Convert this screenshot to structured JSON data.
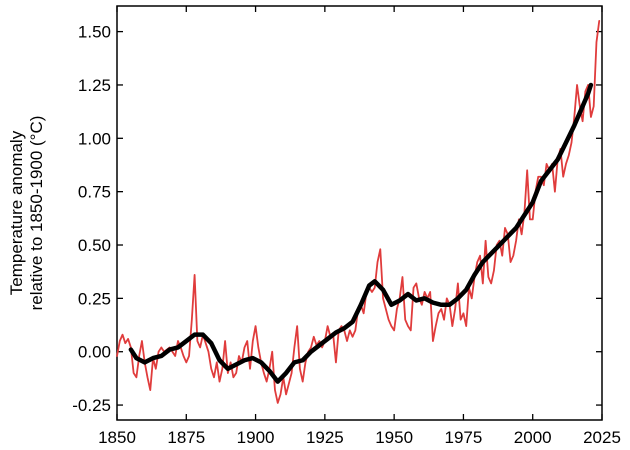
{
  "chart_data": {
    "type": "line",
    "title": "",
    "xlabel": "",
    "ylabel_line1": "Temperature anomaly",
    "ylabel_line2": "relative to 1850-1900 (°C)",
    "xlim": [
      1850,
      2025
    ],
    "ylim": [
      -0.32,
      1.62
    ],
    "grid": false,
    "legend": "none",
    "x_ticks": [
      1850,
      1875,
      1900,
      1925,
      1950,
      1975,
      2000,
      2025
    ],
    "x_tick_labels": [
      "1850",
      "1875",
      "1900",
      "1925",
      "1950",
      "1975",
      "2000",
      "2025"
    ],
    "y_ticks": [
      -0.25,
      0,
      0.25,
      0.5,
      0.75,
      1.0,
      1.25,
      1.5
    ],
    "y_tick_labels": [
      "-0.25",
      "0.00",
      "0.25",
      "0.50",
      "0.75",
      "1.00",
      "1.25",
      "1.50"
    ],
    "series": [
      {
        "color": "#e03c3c",
        "points": [
          [
            1850,
            -0.02
          ],
          [
            1851,
            0.05
          ],
          [
            1852,
            0.08
          ],
          [
            1853,
            0.04
          ],
          [
            1854,
            0.06
          ],
          [
            1855,
            0.02
          ],
          [
            1856,
            -0.1
          ],
          [
            1857,
            -0.12
          ],
          [
            1858,
            -0.02
          ],
          [
            1859,
            0.05
          ],
          [
            1860,
            -0.05
          ],
          [
            1861,
            -0.12
          ],
          [
            1862,
            -0.18
          ],
          [
            1863,
            -0.03
          ],
          [
            1864,
            -0.08
          ],
          [
            1865,
            0.0
          ],
          [
            1866,
            0.02
          ],
          [
            1867,
            0.0
          ],
          [
            1868,
            0.01
          ],
          [
            1869,
            0.02
          ],
          [
            1870,
            0.0
          ],
          [
            1871,
            -0.02
          ],
          [
            1872,
            0.05
          ],
          [
            1873,
            0.02
          ],
          [
            1874,
            -0.02
          ],
          [
            1875,
            -0.05
          ],
          [
            1876,
            -0.02
          ],
          [
            1877,
            0.15
          ],
          [
            1878,
            0.36
          ],
          [
            1879,
            0.05
          ],
          [
            1880,
            0.02
          ],
          [
            1881,
            0.08
          ],
          [
            1882,
            0.04
          ],
          [
            1883,
            0.0
          ],
          [
            1884,
            -0.08
          ],
          [
            1885,
            -0.12
          ],
          [
            1886,
            -0.05
          ],
          [
            1887,
            -0.14
          ],
          [
            1888,
            -0.08
          ],
          [
            1889,
            0.05
          ],
          [
            1890,
            -0.1
          ],
          [
            1891,
            -0.05
          ],
          [
            1892,
            -0.12
          ],
          [
            1893,
            -0.1
          ],
          [
            1894,
            -0.02
          ],
          [
            1895,
            -0.05
          ],
          [
            1896,
            0.02
          ],
          [
            1897,
            0.05
          ],
          [
            1898,
            -0.08
          ],
          [
            1899,
            0.05
          ],
          [
            1900,
            0.12
          ],
          [
            1901,
            0.02
          ],
          [
            1902,
            -0.05
          ],
          [
            1903,
            -0.1
          ],
          [
            1904,
            -0.14
          ],
          [
            1905,
            -0.08
          ],
          [
            1906,
            0.0
          ],
          [
            1907,
            -0.18
          ],
          [
            1908,
            -0.24
          ],
          [
            1909,
            -0.2
          ],
          [
            1910,
            -0.12
          ],
          [
            1911,
            -0.2
          ],
          [
            1912,
            -0.15
          ],
          [
            1913,
            -0.1
          ],
          [
            1914,
            0.02
          ],
          [
            1915,
            0.12
          ],
          [
            1916,
            -0.08
          ],
          [
            1917,
            -0.14
          ],
          [
            1918,
            -0.05
          ],
          [
            1919,
            0.0
          ],
          [
            1920,
            0.02
          ],
          [
            1921,
            0.07
          ],
          [
            1922,
            0.03
          ],
          [
            1923,
            0.05
          ],
          [
            1924,
            0.02
          ],
          [
            1925,
            0.05
          ],
          [
            1926,
            0.12
          ],
          [
            1927,
            0.07
          ],
          [
            1928,
            0.08
          ],
          [
            1929,
            -0.05
          ],
          [
            1930,
            0.1
          ],
          [
            1931,
            0.12
          ],
          [
            1932,
            0.1
          ],
          [
            1933,
            0.05
          ],
          [
            1934,
            0.1
          ],
          [
            1935,
            0.07
          ],
          [
            1936,
            0.1
          ],
          [
            1937,
            0.2
          ],
          [
            1938,
            0.22
          ],
          [
            1939,
            0.18
          ],
          [
            1940,
            0.28
          ],
          [
            1941,
            0.3
          ],
          [
            1942,
            0.28
          ],
          [
            1943,
            0.3
          ],
          [
            1944,
            0.42
          ],
          [
            1945,
            0.48
          ],
          [
            1946,
            0.25
          ],
          [
            1947,
            0.2
          ],
          [
            1948,
            0.15
          ],
          [
            1949,
            0.12
          ],
          [
            1950,
            0.1
          ],
          [
            1951,
            0.2
          ],
          [
            1952,
            0.25
          ],
          [
            1953,
            0.35
          ],
          [
            1954,
            0.15
          ],
          [
            1955,
            0.12
          ],
          [
            1956,
            0.1
          ],
          [
            1957,
            0.3
          ],
          [
            1958,
            0.32
          ],
          [
            1959,
            0.25
          ],
          [
            1960,
            0.22
          ],
          [
            1961,
            0.28
          ],
          [
            1962,
            0.25
          ],
          [
            1963,
            0.28
          ],
          [
            1964,
            0.05
          ],
          [
            1965,
            0.12
          ],
          [
            1966,
            0.18
          ],
          [
            1967,
            0.2
          ],
          [
            1968,
            0.15
          ],
          [
            1969,
            0.25
          ],
          [
            1970,
            0.22
          ],
          [
            1971,
            0.12
          ],
          [
            1972,
            0.2
          ],
          [
            1973,
            0.32
          ],
          [
            1974,
            0.15
          ],
          [
            1975,
            0.18
          ],
          [
            1976,
            0.12
          ],
          [
            1977,
            0.3
          ],
          [
            1978,
            0.25
          ],
          [
            1979,
            0.35
          ],
          [
            1980,
            0.42
          ],
          [
            1981,
            0.45
          ],
          [
            1982,
            0.32
          ],
          [
            1983,
            0.52
          ],
          [
            1984,
            0.35
          ],
          [
            1985,
            0.32
          ],
          [
            1986,
            0.38
          ],
          [
            1987,
            0.5
          ],
          [
            1988,
            0.52
          ],
          [
            1989,
            0.45
          ],
          [
            1990,
            0.58
          ],
          [
            1991,
            0.55
          ],
          [
            1992,
            0.42
          ],
          [
            1993,
            0.45
          ],
          [
            1994,
            0.52
          ],
          [
            1995,
            0.62
          ],
          [
            1996,
            0.55
          ],
          [
            1997,
            0.65
          ],
          [
            1998,
            0.85
          ],
          [
            1999,
            0.62
          ],
          [
            2000,
            0.62
          ],
          [
            2001,
            0.75
          ],
          [
            2002,
            0.82
          ],
          [
            2003,
            0.82
          ],
          [
            2004,
            0.78
          ],
          [
            2005,
            0.88
          ],
          [
            2006,
            0.85
          ],
          [
            2007,
            0.88
          ],
          [
            2008,
            0.75
          ],
          [
            2009,
            0.9
          ],
          [
            2010,
            0.95
          ],
          [
            2011,
            0.82
          ],
          [
            2012,
            0.88
          ],
          [
            2013,
            0.92
          ],
          [
            2014,
            0.98
          ],
          [
            2015,
            1.1
          ],
          [
            2016,
            1.25
          ],
          [
            2017,
            1.15
          ],
          [
            2018,
            1.08
          ],
          [
            2019,
            1.22
          ],
          [
            2020,
            1.25
          ],
          [
            2021,
            1.1
          ],
          [
            2022,
            1.15
          ],
          [
            2023,
            1.45
          ],
          [
            2024,
            1.55
          ]
        ]
      },
      {
        "color": "#000000",
        "points": [
          [
            1855,
            0.01
          ],
          [
            1857,
            -0.03
          ],
          [
            1860,
            -0.05
          ],
          [
            1863,
            -0.03
          ],
          [
            1866,
            -0.02
          ],
          [
            1869,
            0.01
          ],
          [
            1872,
            0.02
          ],
          [
            1875,
            0.05
          ],
          [
            1878,
            0.08
          ],
          [
            1881,
            0.08
          ],
          [
            1884,
            0.04
          ],
          [
            1887,
            -0.04
          ],
          [
            1890,
            -0.08
          ],
          [
            1893,
            -0.06
          ],
          [
            1896,
            -0.04
          ],
          [
            1899,
            -0.03
          ],
          [
            1902,
            -0.05
          ],
          [
            1905,
            -0.09
          ],
          [
            1908,
            -0.14
          ],
          [
            1911,
            -0.1
          ],
          [
            1914,
            -0.05
          ],
          [
            1917,
            -0.04
          ],
          [
            1920,
            0.0
          ],
          [
            1923,
            0.03
          ],
          [
            1926,
            0.06
          ],
          [
            1929,
            0.09
          ],
          [
            1932,
            0.11
          ],
          [
            1935,
            0.14
          ],
          [
            1938,
            0.22
          ],
          [
            1941,
            0.31
          ],
          [
            1943,
            0.33
          ],
          [
            1946,
            0.29
          ],
          [
            1949,
            0.22
          ],
          [
            1952,
            0.24
          ],
          [
            1955,
            0.27
          ],
          [
            1958,
            0.24
          ],
          [
            1961,
            0.25
          ],
          [
            1964,
            0.23
          ],
          [
            1967,
            0.22
          ],
          [
            1970,
            0.22
          ],
          [
            1973,
            0.25
          ],
          [
            1976,
            0.29
          ],
          [
            1979,
            0.36
          ],
          [
            1982,
            0.42
          ],
          [
            1985,
            0.46
          ],
          [
            1988,
            0.5
          ],
          [
            1991,
            0.54
          ],
          [
            1994,
            0.58
          ],
          [
            1997,
            0.64
          ],
          [
            2000,
            0.7
          ],
          [
            2003,
            0.8
          ],
          [
            2006,
            0.85
          ],
          [
            2009,
            0.9
          ],
          [
            2012,
            0.98
          ],
          [
            2015,
            1.06
          ],
          [
            2018,
            1.15
          ],
          [
            2020,
            1.21
          ],
          [
            2021,
            1.25
          ]
        ]
      }
    ]
  }
}
